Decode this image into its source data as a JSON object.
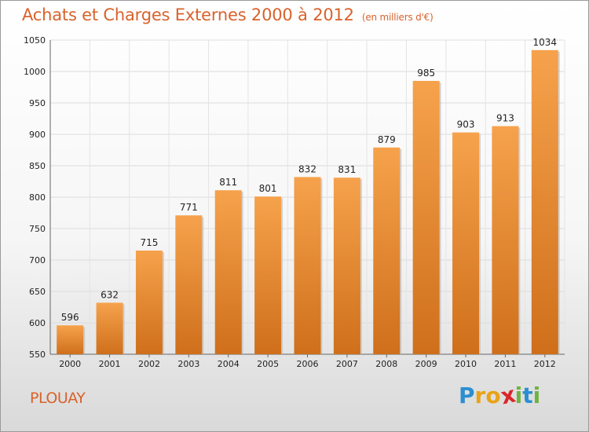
{
  "title": "Achats et Charges Externes 2000 à 2012",
  "subtitle": "(en milliers d'€)",
  "commune": "PLOUAY",
  "brand": {
    "letters": [
      "P",
      "r",
      "o",
      "x",
      "i",
      "t",
      "i"
    ],
    "colors": [
      "#2a8fd0",
      "#e8a317",
      "#e8a317",
      "#d9262b",
      "#6fb33f",
      "#2a8fd0",
      "#6fb33f"
    ]
  },
  "colors": {
    "bar_top": "#f6a24c",
    "bar_bottom": "#cf6f1b",
    "text": "#222222",
    "accent": "#d9622b"
  },
  "chart_data": {
    "type": "bar",
    "categories": [
      "2000",
      "2001",
      "2002",
      "2003",
      "2004",
      "2005",
      "2006",
      "2007",
      "2008",
      "2009",
      "2010",
      "2011",
      "2012"
    ],
    "values": [
      596,
      632,
      715,
      771,
      811,
      801,
      832,
      831,
      879,
      985,
      903,
      913,
      1034
    ],
    "ylim": [
      550,
      1050
    ],
    "yticks": [
      550,
      600,
      650,
      700,
      750,
      800,
      850,
      900,
      950,
      1000,
      1050
    ],
    "grid": true
  }
}
